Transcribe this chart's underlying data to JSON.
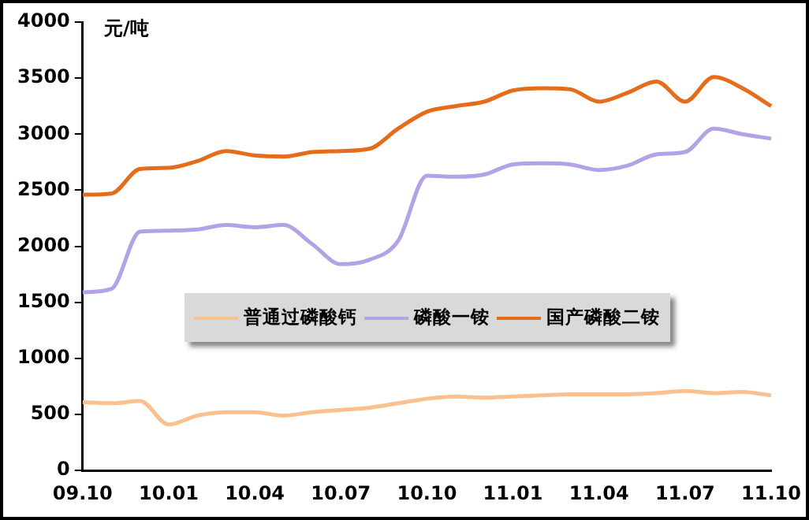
{
  "chart_data": {
    "type": "line",
    "ylabel": "元/吨",
    "categories": [
      "09.10",
      null,
      null,
      "10.01",
      null,
      null,
      "10.04",
      null,
      null,
      "10.07",
      null,
      null,
      "10.10",
      null,
      null,
      "11.01",
      null,
      null,
      "11.04",
      null,
      null,
      "11.07",
      null,
      null,
      "11.10"
    ],
    "series": [
      {
        "name": "普通过磷酸钙",
        "color": "#fac090",
        "values": [
          610,
          600,
          620,
          410,
          490,
          520,
          520,
          490,
          520,
          540,
          560,
          600,
          640,
          660,
          650,
          660,
          670,
          680,
          680,
          680,
          690,
          710,
          690,
          700,
          670
        ]
      },
      {
        "name": "磷酸一铵",
        "color": "#b3a2e6",
        "values": [
          1590,
          1620,
          2130,
          2140,
          2150,
          2190,
          2170,
          2190,
          2020,
          1840,
          1880,
          2050,
          2630,
          2620,
          2640,
          2730,
          2740,
          2730,
          2680,
          2720,
          2820,
          2840,
          3050,
          3000,
          2960
        ]
      },
      {
        "name": "国产磷酸二铵",
        "color": "#e46c1a",
        "values": [
          2460,
          2470,
          2690,
          2700,
          2760,
          2850,
          2810,
          2800,
          2840,
          2850,
          2870,
          3050,
          3200,
          3250,
          3290,
          3390,
          3410,
          3400,
          3290,
          3370,
          3470,
          3290,
          3510,
          3410,
          3250
        ]
      }
    ],
    "ylim": [
      0,
      4000
    ],
    "yticks": [
      0,
      500,
      1000,
      1500,
      2000,
      2500,
      3000,
      3500,
      4000
    ],
    "grid": false,
    "legend": "center",
    "marker": "none",
    "line_style": "solid"
  }
}
